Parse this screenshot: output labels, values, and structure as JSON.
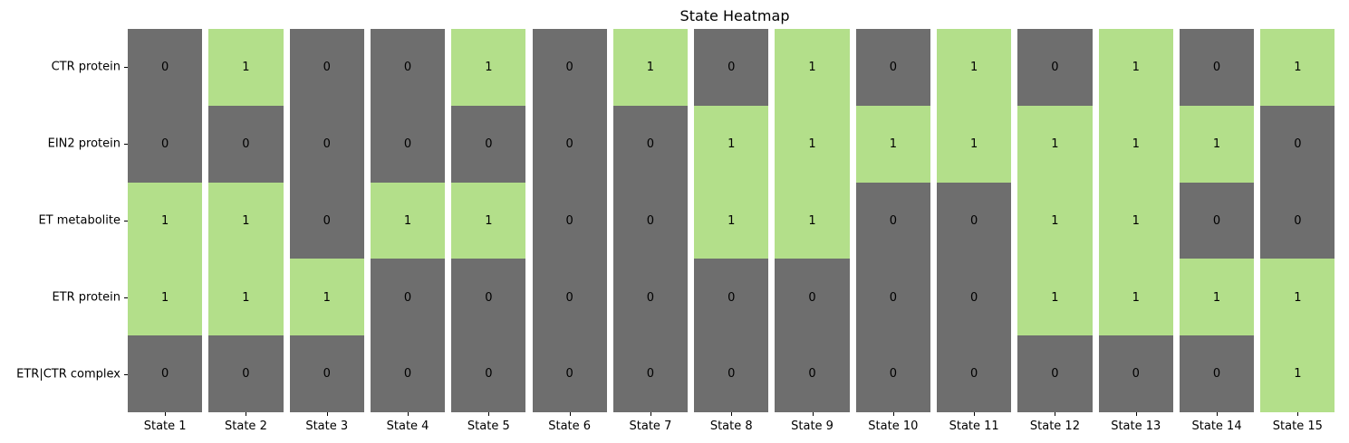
{
  "chart_data": {
    "type": "heatmap",
    "title": "State Heatmap",
    "rows": [
      "CTR protein",
      "EIN2 protein",
      "ET metabolite",
      "ETR protein",
      "ETR|CTR complex"
    ],
    "columns": [
      "State 1",
      "State 2",
      "State 3",
      "State 4",
      "State 5",
      "State 6",
      "State 7",
      "State 8",
      "State 9",
      "State 10",
      "State 11",
      "State 12",
      "State 13",
      "State 14",
      "State 15"
    ],
    "values": [
      [
        0,
        1,
        0,
        0,
        1,
        0,
        1,
        0,
        1,
        0,
        1,
        0,
        1,
        0,
        1
      ],
      [
        0,
        0,
        0,
        0,
        0,
        0,
        0,
        1,
        1,
        1,
        1,
        1,
        1,
        1,
        0
      ],
      [
        1,
        1,
        0,
        1,
        1,
        0,
        0,
        1,
        1,
        0,
        0,
        1,
        1,
        0,
        0
      ],
      [
        1,
        1,
        1,
        0,
        0,
        0,
        0,
        0,
        0,
        0,
        0,
        1,
        1,
        1,
        1
      ],
      [
        0,
        0,
        0,
        0,
        0,
        0,
        0,
        0,
        0,
        0,
        0,
        0,
        0,
        0,
        1
      ]
    ],
    "colors": {
      "0": "#6e6e6e",
      "1": "#b3df8a"
    },
    "grid": false,
    "legend": "none"
  }
}
